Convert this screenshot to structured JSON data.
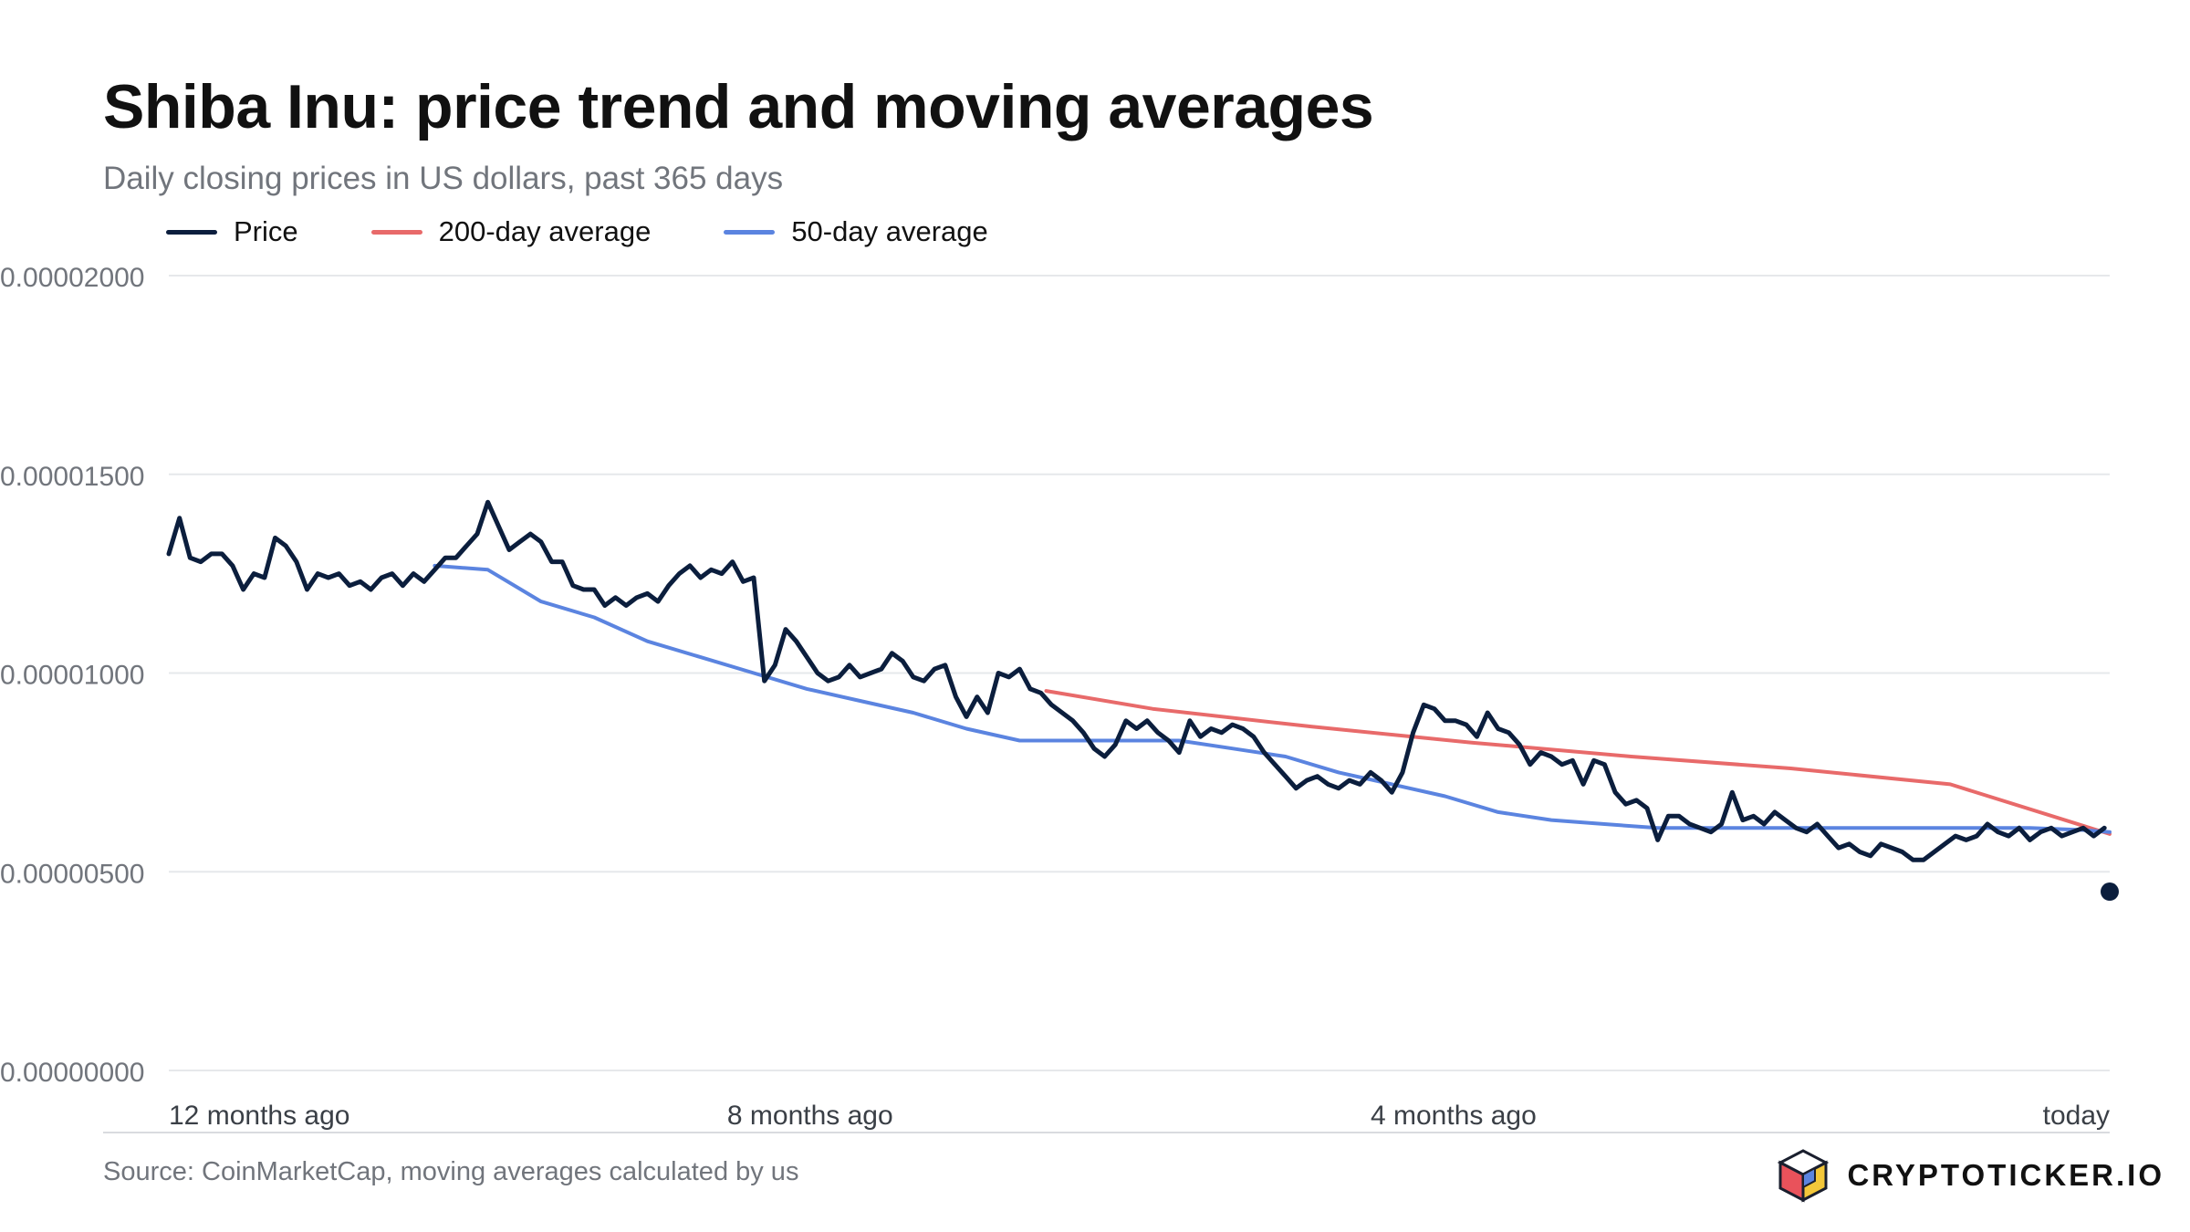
{
  "header": {
    "title": "Shiba Inu: price trend and moving averages",
    "subtitle": "Daily closing prices in US dollars, past 365 days"
  },
  "legend": [
    {
      "label": "Price",
      "color": "#0b1e3d"
    },
    {
      "label": "200-day average",
      "color": "#e86a6a"
    },
    {
      "label": "50-day average",
      "color": "#5b84e0"
    }
  ],
  "footer": {
    "source": "Source: CoinMarketCap, moving averages calculated by us",
    "brand": "CRYPTOTICKER.IO",
    "brand_icon": "cube-logo-icon"
  },
  "chart_data": {
    "type": "line",
    "title": "Shiba Inu: price trend and moving averages",
    "ylim": [
      0,
      2e-05
    ],
    "y_ticks": [
      "0.00000000",
      "0.00000500",
      "0.00001000",
      "0.00001500",
      "0.00002000"
    ],
    "x_range_days_ago": [
      365,
      0
    ],
    "x_ticks": [
      {
        "label": "12 months ago",
        "days_ago": 365
      },
      {
        "label": "8 months ago",
        "days_ago": 260
      },
      {
        "label": "4 months ago",
        "days_ago": 139
      },
      {
        "label": "today",
        "days_ago": 0
      }
    ],
    "grid": true,
    "legend_position": "top-left",
    "series": [
      {
        "name": "Price",
        "color": "#0b1e3d",
        "points": [
          [
            365,
            1.3e-05
          ],
          [
            363,
            1.39e-05
          ],
          [
            361,
            1.29e-05
          ],
          [
            359,
            1.28e-05
          ],
          [
            357,
            1.3e-05
          ],
          [
            355,
            1.3e-05
          ],
          [
            353,
            1.27e-05
          ],
          [
            351,
            1.21e-05
          ],
          [
            349,
            1.25e-05
          ],
          [
            347,
            1.24e-05
          ],
          [
            345,
            1.34e-05
          ],
          [
            343,
            1.32e-05
          ],
          [
            341,
            1.28e-05
          ],
          [
            339,
            1.21e-05
          ],
          [
            337,
            1.25e-05
          ],
          [
            335,
            1.24e-05
          ],
          [
            333,
            1.25e-05
          ],
          [
            331,
            1.22e-05
          ],
          [
            329,
            1.23e-05
          ],
          [
            327,
            1.21e-05
          ],
          [
            325,
            1.24e-05
          ],
          [
            323,
            1.25e-05
          ],
          [
            321,
            1.22e-05
          ],
          [
            319,
            1.25e-05
          ],
          [
            317,
            1.23e-05
          ],
          [
            315,
            1.26e-05
          ],
          [
            313,
            1.29e-05
          ],
          [
            311,
            1.29e-05
          ],
          [
            309,
            1.32e-05
          ],
          [
            307,
            1.35e-05
          ],
          [
            305,
            1.43e-05
          ],
          [
            303,
            1.37e-05
          ],
          [
            301,
            1.31e-05
          ],
          [
            299,
            1.33e-05
          ],
          [
            297,
            1.35e-05
          ],
          [
            295,
            1.33e-05
          ],
          [
            293,
            1.28e-05
          ],
          [
            291,
            1.28e-05
          ],
          [
            289,
            1.22e-05
          ],
          [
            287,
            1.21e-05
          ],
          [
            285,
            1.21e-05
          ],
          [
            283,
            1.17e-05
          ],
          [
            281,
            1.19e-05
          ],
          [
            279,
            1.17e-05
          ],
          [
            277,
            1.19e-05
          ],
          [
            275,
            1.2e-05
          ],
          [
            273,
            1.18e-05
          ],
          [
            271,
            1.22e-05
          ],
          [
            269,
            1.25e-05
          ],
          [
            267,
            1.27e-05
          ],
          [
            265,
            1.24e-05
          ],
          [
            263,
            1.26e-05
          ],
          [
            261,
            1.25e-05
          ],
          [
            259,
            1.28e-05
          ],
          [
            257,
            1.23e-05
          ],
          [
            255,
            1.24e-05
          ],
          [
            253,
            9.8e-06
          ],
          [
            251,
            1.02e-05
          ],
          [
            249,
            1.11e-05
          ],
          [
            247,
            1.08e-05
          ],
          [
            245,
            1.04e-05
          ],
          [
            243,
            1e-05
          ],
          [
            241,
            9.8e-06
          ],
          [
            239,
            9.9e-06
          ],
          [
            237,
            1.02e-05
          ],
          [
            235,
            9.9e-06
          ],
          [
            233,
            1e-05
          ],
          [
            231,
            1.01e-05
          ],
          [
            229,
            1.05e-05
          ],
          [
            227,
            1.03e-05
          ],
          [
            225,
            9.9e-06
          ],
          [
            223,
            9.8e-06
          ],
          [
            221,
            1.01e-05
          ],
          [
            219,
            1.02e-05
          ],
          [
            217,
            9.4e-06
          ],
          [
            215,
            8.9e-06
          ],
          [
            213,
            9.4e-06
          ],
          [
            211,
            9e-06
          ],
          [
            209,
            1e-05
          ],
          [
            207,
            9.9e-06
          ],
          [
            205,
            1.01e-05
          ],
          [
            203,
            9.6e-06
          ],
          [
            201,
            9.5e-06
          ],
          [
            199,
            9.2e-06
          ],
          [
            197,
            9e-06
          ],
          [
            195,
            8.8e-06
          ],
          [
            193,
            8.5e-06
          ],
          [
            191,
            8.1e-06
          ],
          [
            189,
            7.9e-06
          ],
          [
            187,
            8.2e-06
          ],
          [
            185,
            8.8e-06
          ],
          [
            183,
            8.6e-06
          ],
          [
            181,
            8.8e-06
          ],
          [
            179,
            8.5e-06
          ],
          [
            177,
            8.3e-06
          ],
          [
            175,
            8e-06
          ],
          [
            173,
            8.8e-06
          ],
          [
            171,
            8.4e-06
          ],
          [
            169,
            8.6e-06
          ],
          [
            167,
            8.5e-06
          ],
          [
            165,
            8.7e-06
          ],
          [
            163,
            8.6e-06
          ],
          [
            161,
            8.4e-06
          ],
          [
            159,
            8e-06
          ],
          [
            157,
            7.7e-06
          ],
          [
            155,
            7.4e-06
          ],
          [
            153,
            7.1e-06
          ],
          [
            151,
            7.3e-06
          ],
          [
            149,
            7.4e-06
          ],
          [
            147,
            7.2e-06
          ],
          [
            145,
            7.1e-06
          ],
          [
            143,
            7.3e-06
          ],
          [
            141,
            7.2e-06
          ],
          [
            139,
            7.5e-06
          ],
          [
            137,
            7.3e-06
          ],
          [
            135,
            7e-06
          ],
          [
            133,
            7.5e-06
          ],
          [
            131,
            8.5e-06
          ],
          [
            129,
            9.2e-06
          ],
          [
            127,
            9.1e-06
          ],
          [
            125,
            8.8e-06
          ],
          [
            123,
            8.8e-06
          ],
          [
            121,
            8.7e-06
          ],
          [
            119,
            8.4e-06
          ],
          [
            117,
            9e-06
          ],
          [
            115,
            8.6e-06
          ],
          [
            113,
            8.5e-06
          ],
          [
            111,
            8.2e-06
          ],
          [
            109,
            7.7e-06
          ],
          [
            107,
            8e-06
          ],
          [
            105,
            7.9e-06
          ],
          [
            103,
            7.7e-06
          ],
          [
            101,
            7.8e-06
          ],
          [
            99,
            7.2e-06
          ],
          [
            97,
            7.8e-06
          ],
          [
            95,
            7.7e-06
          ],
          [
            93,
            7e-06
          ],
          [
            91,
            6.7e-06
          ],
          [
            89,
            6.8e-06
          ],
          [
            87,
            6.6e-06
          ],
          [
            85,
            5.8e-06
          ],
          [
            83,
            6.4e-06
          ],
          [
            81,
            6.4e-06
          ],
          [
            79,
            6.2e-06
          ],
          [
            77,
            6.1e-06
          ],
          [
            75,
            6e-06
          ],
          [
            73,
            6.2e-06
          ],
          [
            71,
            7e-06
          ],
          [
            69,
            6.3e-06
          ],
          [
            67,
            6.4e-06
          ],
          [
            65,
            6.2e-06
          ],
          [
            63,
            6.5e-06
          ],
          [
            61,
            6.3e-06
          ],
          [
            59,
            6.1e-06
          ],
          [
            57,
            6e-06
          ],
          [
            55,
            6.2e-06
          ],
          [
            53,
            5.9e-06
          ],
          [
            51,
            5.6e-06
          ],
          [
            49,
            5.7e-06
          ],
          [
            47,
            5.5e-06
          ],
          [
            45,
            5.4e-06
          ],
          [
            43,
            5.7e-06
          ],
          [
            41,
            5.6e-06
          ],
          [
            39,
            5.5e-06
          ],
          [
            37,
            5.3e-06
          ],
          [
            35,
            5.3e-06
          ],
          [
            33,
            5.5e-06
          ],
          [
            31,
            5.7e-06
          ],
          [
            29,
            5.9e-06
          ],
          [
            27,
            5.8e-06
          ],
          [
            25,
            5.9e-06
          ],
          [
            23,
            6.2e-06
          ],
          [
            21,
            6e-06
          ],
          [
            19,
            5.9e-06
          ],
          [
            17,
            6.1e-06
          ],
          [
            15,
            5.8e-06
          ],
          [
            13,
            6e-06
          ],
          [
            11,
            6.1e-06
          ],
          [
            9,
            5.9e-06
          ],
          [
            7,
            6e-06
          ],
          [
            5,
            6.1e-06
          ],
          [
            3,
            5.9e-06
          ],
          [
            1,
            6.1e-06
          ]
        ]
      },
      {
        "name": "200-day average",
        "color": "#e86a6a",
        "points": [
          [
            200,
            9.55e-06
          ],
          [
            180,
            9.1e-06
          ],
          [
            150,
            8.65e-06
          ],
          [
            120,
            8.25e-06
          ],
          [
            90,
            7.9e-06
          ],
          [
            60,
            7.6e-06
          ],
          [
            30,
            7.2e-06
          ],
          [
            0,
            5.95e-06
          ]
        ]
      },
      {
        "name": "50-day average",
        "color": "#5b84e0",
        "points": [
          [
            315,
            1.27e-05
          ],
          [
            305,
            1.26e-05
          ],
          [
            295,
            1.18e-05
          ],
          [
            285,
            1.14e-05
          ],
          [
            275,
            1.08e-05
          ],
          [
            265,
            1.04e-05
          ],
          [
            255,
            1e-05
          ],
          [
            245,
            9.6e-06
          ],
          [
            235,
            9.3e-06
          ],
          [
            225,
            9e-06
          ],
          [
            215,
            8.6e-06
          ],
          [
            205,
            8.3e-06
          ],
          [
            195,
            8.3e-06
          ],
          [
            185,
            8.3e-06
          ],
          [
            175,
            8.3e-06
          ],
          [
            165,
            8.1e-06
          ],
          [
            155,
            7.9e-06
          ],
          [
            145,
            7.5e-06
          ],
          [
            135,
            7.2e-06
          ],
          [
            125,
            6.9e-06
          ],
          [
            115,
            6.5e-06
          ],
          [
            105,
            6.3e-06
          ],
          [
            95,
            6.2e-06
          ],
          [
            85,
            6.1e-06
          ],
          [
            75,
            6.1e-06
          ],
          [
            65,
            6.1e-06
          ],
          [
            55,
            6.1e-06
          ],
          [
            45,
            6.1e-06
          ],
          [
            35,
            6.1e-06
          ],
          [
            25,
            6.1e-06
          ],
          [
            15,
            6.1e-06
          ],
          [
            5,
            6.05e-06
          ],
          [
            0,
            6e-06
          ]
        ]
      }
    ]
  }
}
